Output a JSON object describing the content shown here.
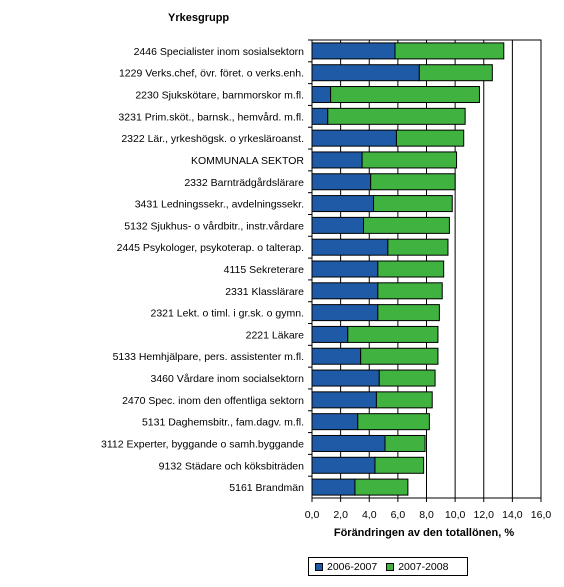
{
  "chart_data": {
    "type": "bar",
    "orientation": "horizontal",
    "stacked": true,
    "category_header": "Yrkesgrupp",
    "xlabel": "Förändringen av den totallönen, %",
    "xlim": [
      0,
      16
    ],
    "xticks": [
      "0,0",
      "2,0",
      "4,0",
      "6,0",
      "8,0",
      "10,0",
      "12,0",
      "14,0",
      "16,0"
    ],
    "grid": "vertical",
    "legend_position": "bottom",
    "categories": [
      "2446   Specialister inom sosialsektorn",
      "1229   Verks.chef, övr. föret. o verks.enh.",
      "2230   Sjukskötare, barnmorskor m.fl.",
      "3231   Prim.sköt., barnsk., hemvård. m.fl.",
      "2322   Lär., yrkeshögsk. o yrkesläroanst.",
      "KOMMUNALA SEKTOR",
      "2332   Barnträdgårdslärare",
      "3431   Ledningssekr., avdelningssekr.",
      "5132   Sjukhus- o vårdbitr., instr.vårdare",
      "2445   Psykologer, psykoterap. o talterap.",
      "4115   Sekreterare",
      "2331   Klasslärare",
      "2321   Lekt. o timl. i gr.sk. o gymn.",
      "2221   Läkare",
      "5133   Hemhjälpare, pers. assistenter m.fl.",
      "3460   Vårdare inom socialsektorn",
      "2470   Spec. inom den offentliga sektorn",
      "5131   Daghemsbitr., fam.dagv. m.fl.",
      "3112   Experter, byggande o samh.byggande",
      "9132   Städare och köksbiträden",
      "5161   Brandmän"
    ],
    "series": [
      {
        "name": "2006-2007",
        "color": "#1f5aa6",
        "values": [
          5.8,
          7.5,
          1.3,
          1.1,
          5.9,
          3.5,
          4.1,
          4.3,
          3.6,
          5.3,
          4.6,
          4.6,
          4.6,
          2.5,
          3.4,
          4.7,
          4.5,
          3.2,
          5.1,
          4.4,
          3.0
        ]
      },
      {
        "name": "2007-2008",
        "color": "#3fb23f",
        "values": [
          7.6,
          5.1,
          10.4,
          9.6,
          4.7,
          6.6,
          5.9,
          5.5,
          6.0,
          4.2,
          4.6,
          4.5,
          4.3,
          6.3,
          5.4,
          3.9,
          3.9,
          5.0,
          2.8,
          3.4,
          3.7
        ]
      }
    ]
  }
}
